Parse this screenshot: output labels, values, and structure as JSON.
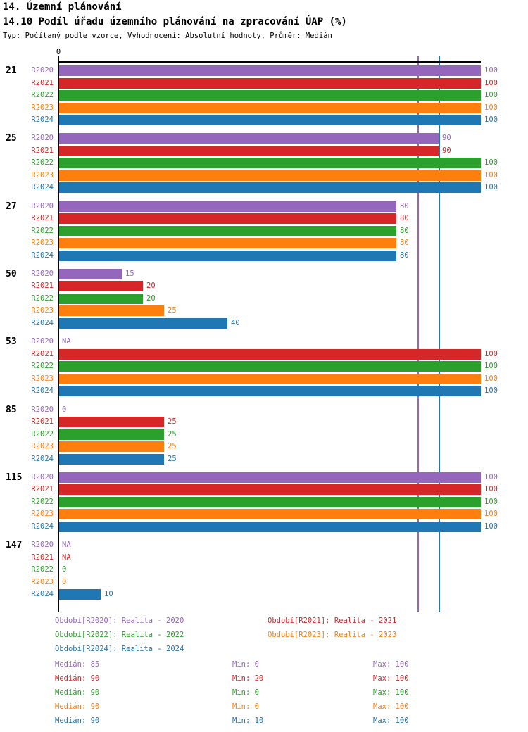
{
  "header": {
    "title": "14. Územní plánování",
    "subtitle": "14.10 Podíl úřadu územního plánování na zpracování ÚAP (%)",
    "meta": "Typ: Počítaný podle vzorce, Vyhodnocení: Absolutní hodnoty, Průměr: Medián"
  },
  "chart_data": {
    "type": "bar",
    "orientation": "horizontal",
    "axis": {
      "min": 0,
      "max": 100,
      "tick_label": "0",
      "unit": "%",
      "grid": false
    },
    "series": [
      {
        "name": "R2020",
        "label": "Období[R2020]: Realita - 2020",
        "color": "#9467bd",
        "median": 85,
        "min": 0,
        "max": 100
      },
      {
        "name": "R2021",
        "label": "Období[R2021]: Realita - 2021",
        "color": "#d62728",
        "median": 90,
        "min": 20,
        "max": 100
      },
      {
        "name": "R2022",
        "label": "Období[R2022]: Realita - 2022",
        "color": "#2ca02c",
        "median": 90,
        "min": 0,
        "max": 100
      },
      {
        "name": "R2023",
        "label": "Období[R2023]: Realita - 2023",
        "color": "#ff7f0e",
        "median": 90,
        "min": 0,
        "max": 100
      },
      {
        "name": "R2024",
        "label": "Období[R2024]: Realita - 2024",
        "color": "#1f77b4",
        "median": 90,
        "min": 10,
        "max": 100
      }
    ],
    "groups": [
      {
        "label": "21",
        "values": [
          100,
          100,
          100,
          100,
          100
        ]
      },
      {
        "label": "25",
        "values": [
          90,
          90,
          100,
          100,
          100
        ]
      },
      {
        "label": "27",
        "values": [
          80,
          80,
          80,
          80,
          80
        ]
      },
      {
        "label": "50",
        "values": [
          15,
          20,
          20,
          25,
          40
        ]
      },
      {
        "label": "53",
        "values": [
          "NA",
          100,
          100,
          100,
          100
        ]
      },
      {
        "label": "85",
        "values": [
          0,
          25,
          25,
          25,
          25
        ]
      },
      {
        "label": "115",
        "values": [
          100,
          100,
          100,
          100,
          100
        ]
      },
      {
        "label": "147",
        "values": [
          "NA",
          "NA",
          0,
          0,
          10
        ]
      }
    ],
    "median_lines": [
      {
        "value": 85,
        "color": "#9467bd"
      },
      {
        "value": 90,
        "color": "#1f77b4"
      }
    ],
    "stat_labels": {
      "median": "Medián",
      "min": "Min",
      "max": "Max"
    }
  }
}
